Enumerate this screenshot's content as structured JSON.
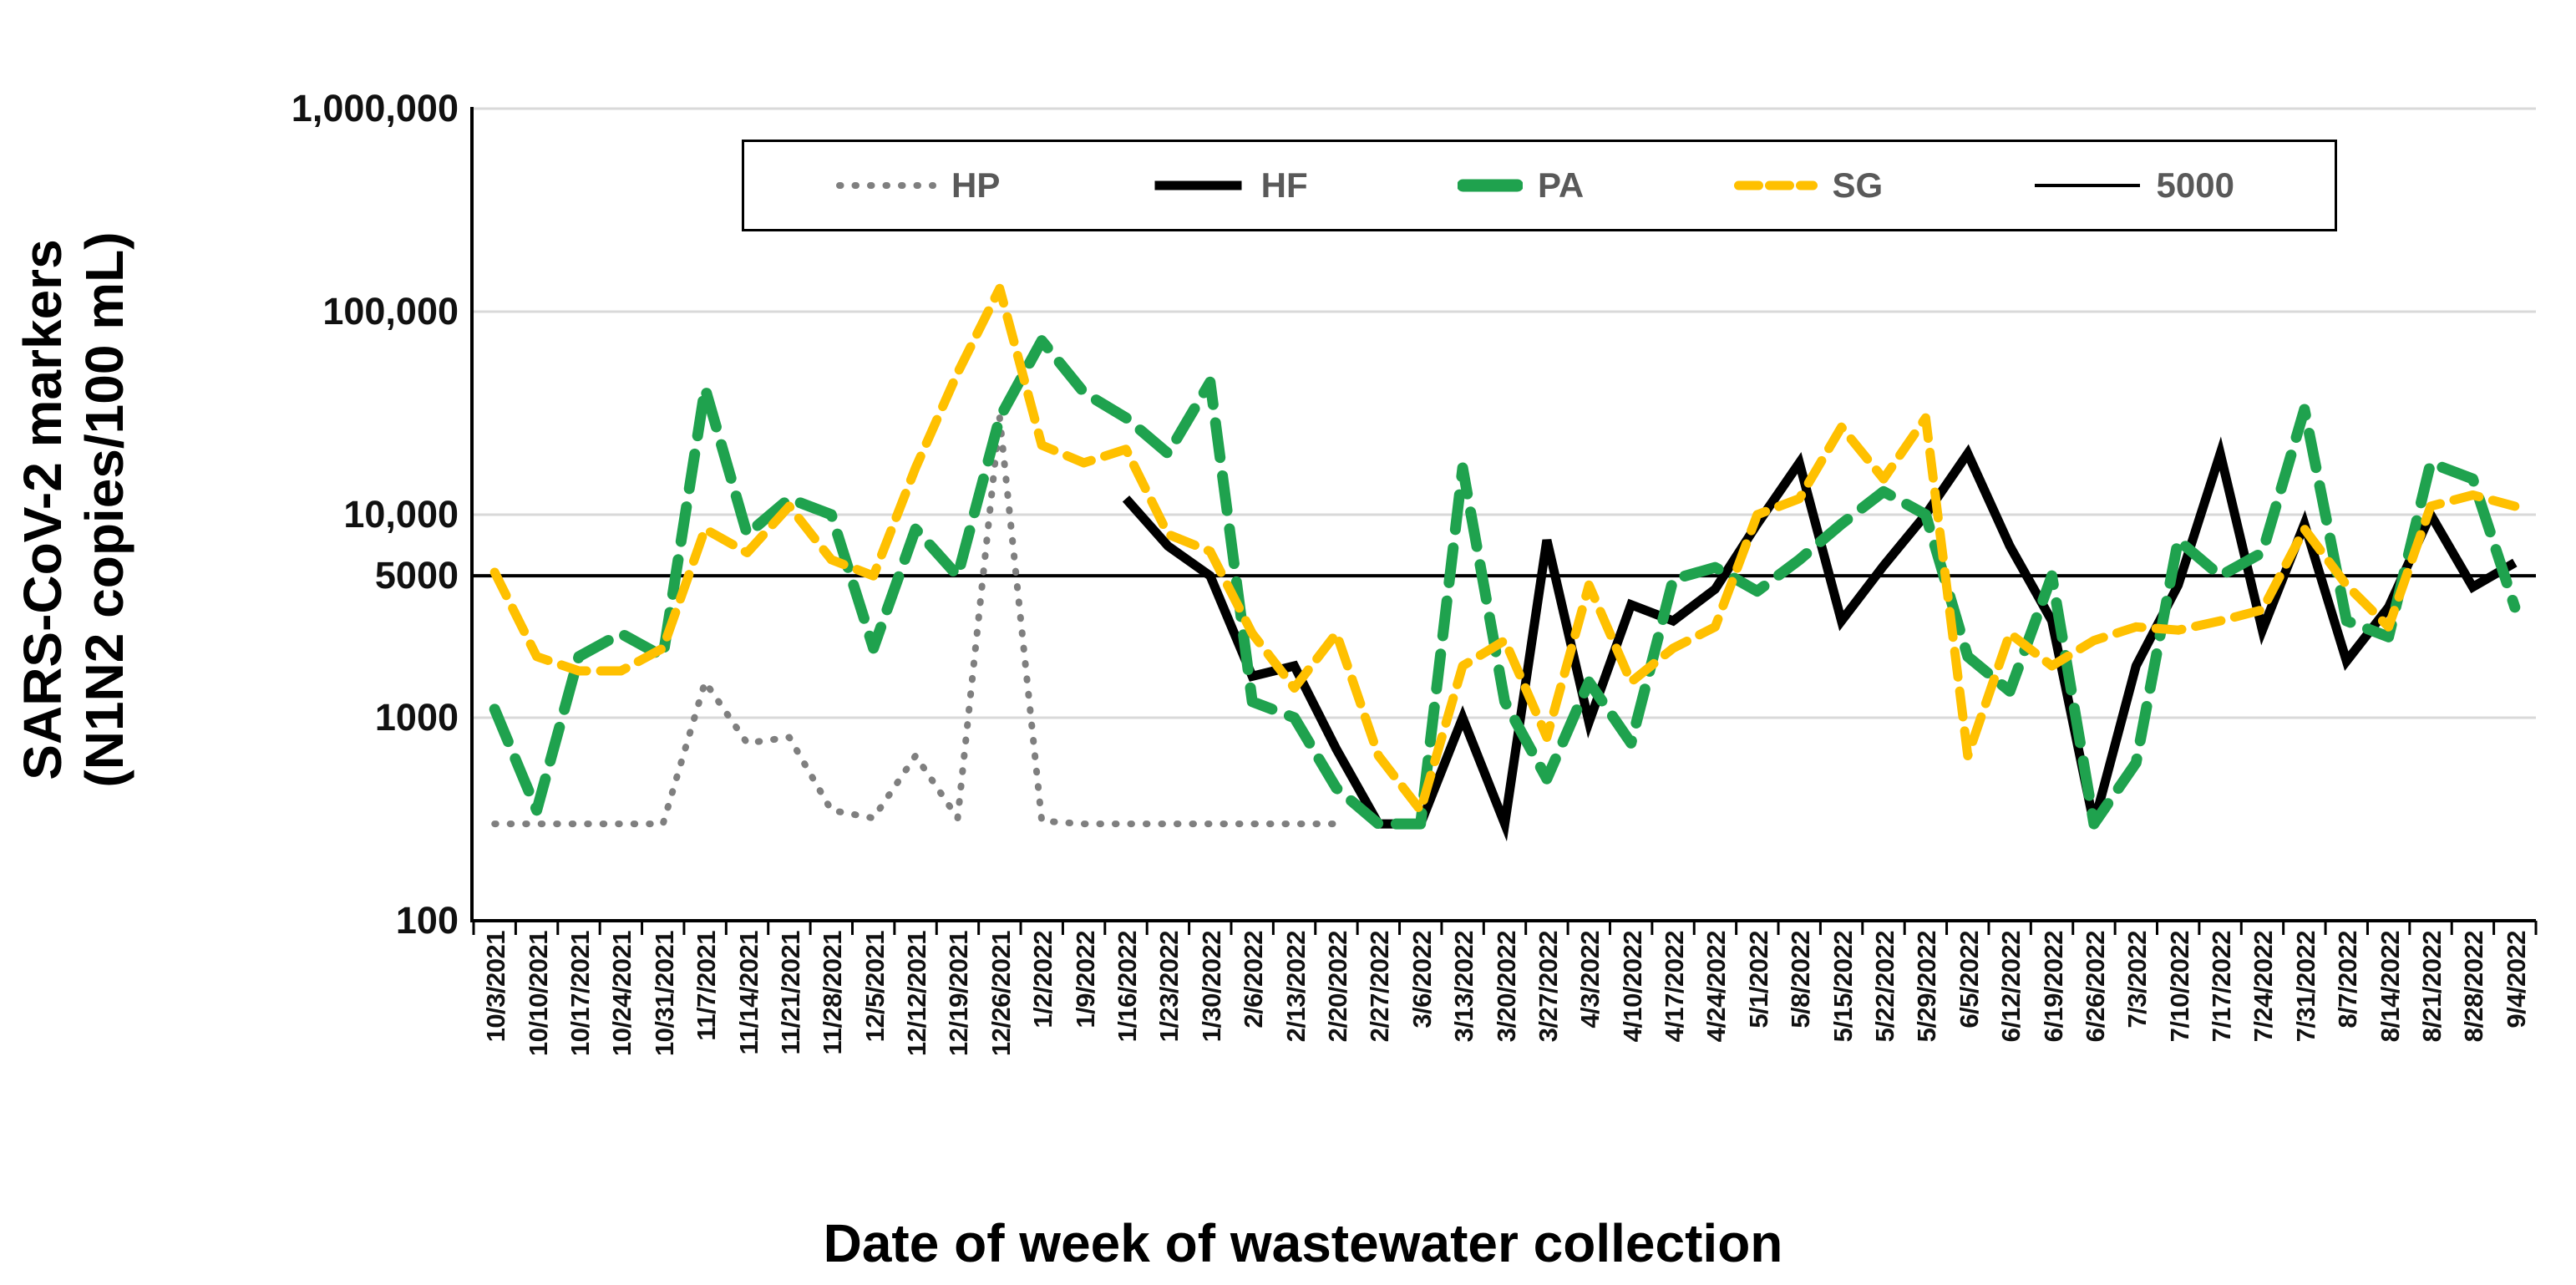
{
  "titles": {
    "y_axis_line1": "SARS-CoV-2 markers",
    "y_axis_line2": "(N1N2 copies/100 mL)",
    "x_axis": "Date of week of wastewater collection"
  },
  "colors": {
    "hp_gray": "#7F7F7F",
    "hf_black": "#000000",
    "pa_green": "#1FA24E",
    "sg_gold": "#FFC000",
    "gridline": "#D9D9D9",
    "legend_text": "#595959",
    "axis": "#000000"
  },
  "chart_data": {
    "type": "line",
    "y_scale": "log10",
    "ylim": [
      100,
      1000000
    ],
    "grid": "horizontal-on",
    "legend_position": "top",
    "ylabel": "SARS-CoV-2 markers (N1N2 copies/100 mL)",
    "xlabel": "Date of week of wastewater collection",
    "y_ticks": [
      {
        "label": "1,000,000",
        "value": 1000000
      },
      {
        "label": "100,000",
        "value": 100000
      },
      {
        "label": "10,000",
        "value": 10000
      },
      {
        "label": "5000",
        "value": 5000
      },
      {
        "label": "1000",
        "value": 1000
      },
      {
        "label": "100",
        "value": 100
      }
    ],
    "grid_values": [
      1000000,
      100000,
      10000,
      1000
    ],
    "reference_line": {
      "name": "5000",
      "value": 5000
    },
    "categories": [
      "10/3/2021",
      "10/10/2021",
      "10/17/2021",
      "10/24/2021",
      "10/31/2021",
      "11/7/2021",
      "11/14/2021",
      "11/21/2021",
      "11/28/2021",
      "12/5/2021",
      "12/12/2021",
      "12/19/2021",
      "12/26/2021",
      "1/2/2022",
      "1/9/2022",
      "1/16/2022",
      "1/23/2022",
      "1/30/2022",
      "2/6/2022",
      "2/13/2022",
      "2/20/2022",
      "2/27/2022",
      "3/6/2022",
      "3/13/2022",
      "3/20/2022",
      "3/27/2022",
      "4/3/2022",
      "4/10/2022",
      "4/17/2022",
      "4/24/2022",
      "5/1/2022",
      "5/8/2022",
      "5/15/2022",
      "5/22/2022",
      "5/29/2022",
      "6/5/2022",
      "6/12/2022",
      "6/19/2022",
      "6/26/2022",
      "7/3/2022",
      "7/10/2022",
      "7/17/2022",
      "7/24/2022",
      "7/31/2022",
      "8/7/2022",
      "8/14/2022",
      "8/21/2022",
      "8/28/2022",
      "9/4/2022"
    ],
    "series": [
      {
        "name": "HP",
        "color": "#7F7F7F",
        "style": "dotted",
        "values": [
          300,
          300,
          300,
          300,
          300,
          1500,
          750,
          800,
          350,
          320,
          650,
          320,
          30000,
          310,
          300,
          300,
          300,
          300,
          300,
          300,
          300,
          null,
          null,
          null,
          null,
          null,
          null,
          null,
          null,
          null,
          null,
          null,
          null,
          null,
          null,
          null,
          null,
          null,
          null,
          null,
          null,
          null,
          null,
          null,
          null,
          null,
          null,
          null,
          null
        ]
      },
      {
        "name": "HF",
        "color": "#000000",
        "style": "solid",
        "values": [
          null,
          null,
          null,
          null,
          null,
          null,
          null,
          null,
          null,
          null,
          null,
          null,
          null,
          null,
          null,
          12000,
          7000,
          5000,
          1600,
          1800,
          700,
          300,
          300,
          1000,
          300,
          7500,
          950,
          3600,
          3000,
          4300,
          9000,
          18000,
          3000,
          5600,
          10000,
          20000,
          7000,
          3000,
          300,
          1800,
          4500,
          20000,
          2700,
          9000,
          1900,
          3500,
          10000,
          4400,
          5800
        ]
      },
      {
        "name": "PA",
        "color": "#1FA24E",
        "style": "long-dash",
        "values": [
          1100,
          350,
          2000,
          2600,
          2000,
          42000,
          8000,
          12000,
          10000,
          2200,
          8500,
          5000,
          30000,
          72000,
          40000,
          30000,
          20000,
          45000,
          1200,
          1000,
          450,
          300,
          300,
          17000,
          1200,
          500,
          1500,
          750,
          4800,
          5500,
          4200,
          6000,
          9000,
          13000,
          10000,
          2000,
          1350,
          5000,
          300,
          600,
          7500,
          5000,
          6500,
          33000,
          3000,
          2500,
          18000,
          15000,
          3500
        ]
      },
      {
        "name": "SG",
        "color": "#FFC000",
        "style": "dash",
        "values": [
          5200,
          2000,
          1700,
          1700,
          2200,
          8500,
          6500,
          11000,
          6000,
          5000,
          17000,
          50000,
          130000,
          22000,
          18000,
          21000,
          8000,
          6600,
          2600,
          1400,
          2600,
          650,
          350,
          1800,
          2400,
          800,
          4500,
          1500,
          2200,
          2800,
          10000,
          12000,
          27000,
          15000,
          30000,
          650,
          2600,
          1800,
          2400,
          2800,
          2700,
          3000,
          3400,
          8500,
          4500,
          2800,
          11000,
          12500,
          11000
        ]
      },
      {
        "name": "5000",
        "color": "#000000",
        "style": "thin-solid",
        "reference": 5000,
        "values": null
      }
    ]
  }
}
